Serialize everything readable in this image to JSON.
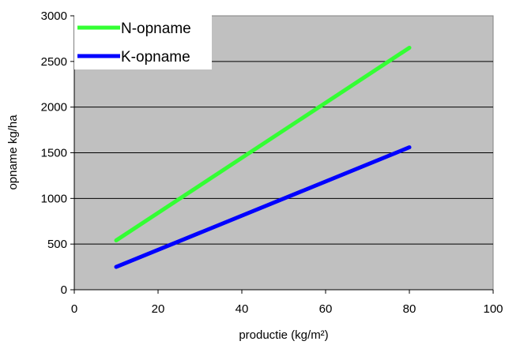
{
  "chart_data": {
    "type": "line",
    "xlabel": "productie (kg/m²)",
    "ylabel": "opname kg/ha",
    "xlim": [
      0,
      100
    ],
    "ylim": [
      0,
      3000
    ],
    "xticks": [
      0,
      20,
      40,
      60,
      80,
      100
    ],
    "yticks": [
      0,
      500,
      1000,
      1500,
      2000,
      2500,
      3000
    ],
    "grid": "horizontal",
    "plot_background": "#c0c0c0",
    "legend_position": "top-left",
    "series": [
      {
        "name": "N-opname",
        "color": "#33ff33",
        "x": [
          10,
          80
        ],
        "y": [
          540,
          2650
        ]
      },
      {
        "name": "K-opname",
        "color": "#0000ff",
        "x": [
          10,
          80
        ],
        "y": [
          250,
          1560
        ]
      }
    ]
  }
}
